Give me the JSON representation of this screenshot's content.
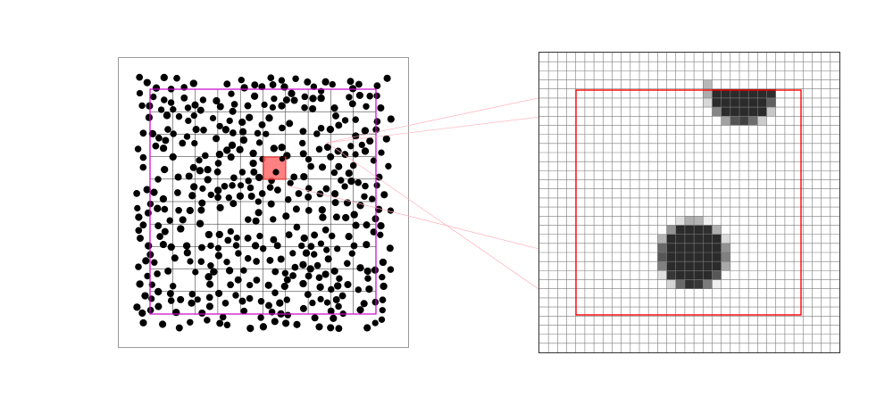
{
  "figure": {
    "left_panel": {
      "description_hidden": "",
      "grid_divisions": 10,
      "highlighted_cell": {
        "col": 5,
        "row": 3
      },
      "dot_color": "#000000",
      "grid_color": "#000000",
      "boundary_color": "#cc00cc",
      "highlight_fill": "#ff6b6b",
      "highlight_stroke": "#e02020"
    },
    "right_panel": {
      "pixel_grid_divisions": 33,
      "roi_color": "#ff0000",
      "particle_fill": "#2b2b2b",
      "edge_gray": "#9a9a9a"
    },
    "connector_color": "#ff9aa8"
  }
}
